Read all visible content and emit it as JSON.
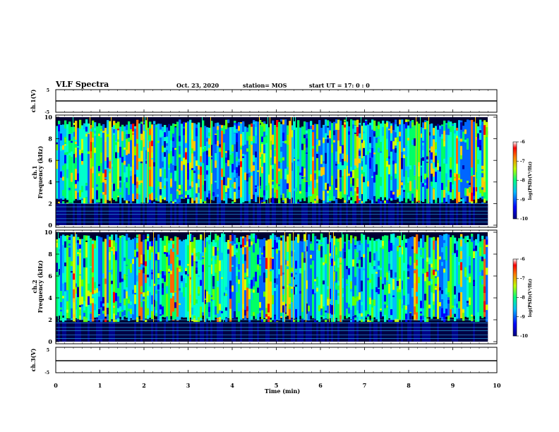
{
  "header": {
    "title": "VLF Spectra",
    "date": "Oct. 23, 2020",
    "station": "station= MOS",
    "start": "start UT =  17: 0  : 0"
  },
  "chart_data": [
    {
      "type": "line",
      "panel": "ch1-waveform",
      "ylabel": "ch.1(V)",
      "ylim": [
        -5,
        5
      ],
      "yticks": [
        "5",
        "-5"
      ],
      "x": [
        0,
        10
      ],
      "series": [
        {
          "values": [
            0,
            0
          ]
        }
      ]
    },
    {
      "type": "heatmap",
      "panel": "ch1-spectrogram",
      "ylabel": [
        "ch.1",
        "Frequency (kHz)"
      ],
      "ylim": [
        0,
        10
      ],
      "yticks": [
        "0",
        "2",
        "4",
        "6",
        "8",
        "10"
      ],
      "x_range": [
        0,
        10
      ],
      "colorbar": {
        "label": "log(PSD)(V²/Hz)",
        "ticks": [
          "-6",
          "-7",
          "-8",
          "-9",
          "-10"
        ],
        "range": [
          -10,
          -6
        ]
      },
      "activity_band_khz": [
        2.0,
        9.8
      ]
    },
    {
      "type": "heatmap",
      "panel": "ch2-spectrogram",
      "ylabel": [
        "ch.2",
        "Frequency (kHz)"
      ],
      "ylim": [
        0,
        10
      ],
      "yticks": [
        "0",
        "2",
        "4",
        "6",
        "8",
        "10"
      ],
      "x_range": [
        0,
        10
      ],
      "colorbar": {
        "label": "log(PSD)(V²/Hz)",
        "ticks": [
          "-6",
          "-7",
          "-8",
          "-9",
          "-10"
        ],
        "range": [
          -10,
          -6
        ]
      },
      "activity_band_khz": [
        1.8,
        9.9
      ]
    },
    {
      "type": "line",
      "panel": "ch3-waveform",
      "ylabel": "ch.3(V)",
      "ylim": [
        -5,
        5
      ],
      "yticks": [
        "5",
        "-5"
      ],
      "x": [
        0,
        10
      ],
      "series": [
        {
          "values": [
            0,
            0
          ]
        }
      ]
    }
  ],
  "xaxis": {
    "label": "Time (min)",
    "range": [
      0,
      10
    ],
    "ticks": [
      "0",
      "1",
      "2",
      "3",
      "4",
      "5",
      "6",
      "7",
      "8",
      "9",
      "10"
    ]
  },
  "colors": {
    "low": "#00007f",
    "mid": "#00ff7f",
    "high": "#ff0000",
    "axis": "#000000"
  }
}
